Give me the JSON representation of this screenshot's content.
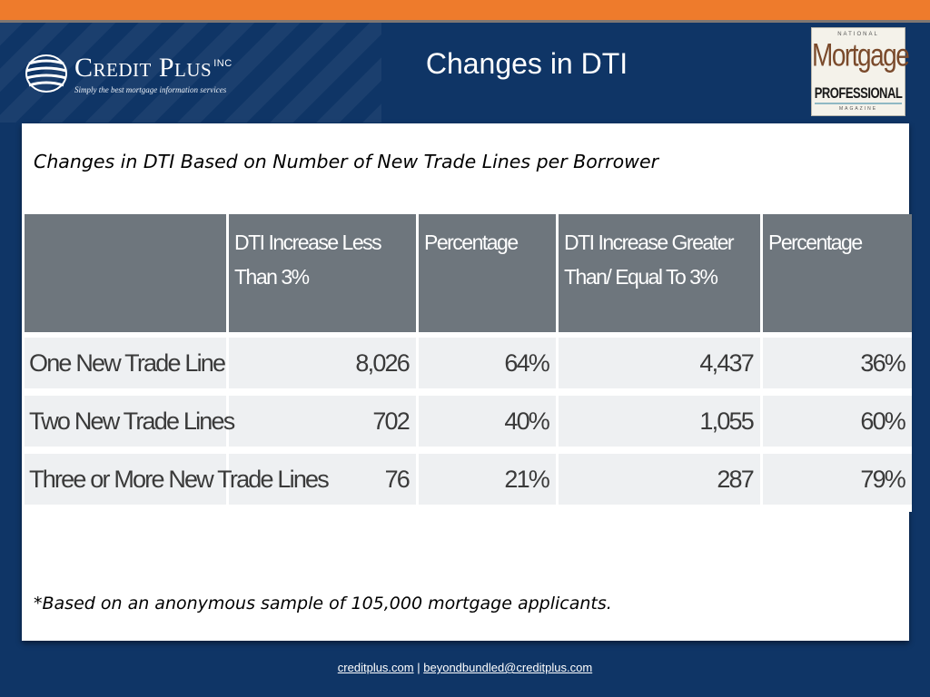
{
  "header": {
    "title": "Changes in DTI",
    "logo": {
      "brand": "Credit Plus",
      "inc": "INC",
      "tagline": "Simply the best mortgage information services",
      "icon": "credit-plus-globe-icon"
    },
    "badge": {
      "line1": "NATIONAL",
      "line2": "Mortgage",
      "line3": "PROFESSIONAL",
      "line4": "MAGAZINE"
    }
  },
  "content": {
    "subtitle": "Changes in DTI Based on Number of New Trade Lines per Borrower",
    "table": {
      "headers": [
        "",
        "DTI Increase Less Than 3%",
        "Percentage",
        "DTI Increase Greater Than/ Equal To 3%",
        "Percentage"
      ],
      "rows": [
        [
          "One New Trade Line",
          "8,026",
          "64%",
          "4,437",
          "36%"
        ],
        [
          "Two New Trade Lines",
          "702",
          "40%",
          "1,055",
          "60%"
        ],
        [
          "Three or More New Trade Lines",
          "76",
          "21%",
          "287",
          "79%"
        ]
      ]
    },
    "footnote": "*Based on an anonymous sample of 105,000 mortgage applicants."
  },
  "footer": {
    "link1": "creditplus.com",
    "separator": "|",
    "link2": "beyondbundled@creditplus.com"
  },
  "colors": {
    "background": "#0f3566",
    "top_stripe": "#ee7b2c",
    "table_header": "#6e767d",
    "table_cell": "#eef0f2"
  }
}
